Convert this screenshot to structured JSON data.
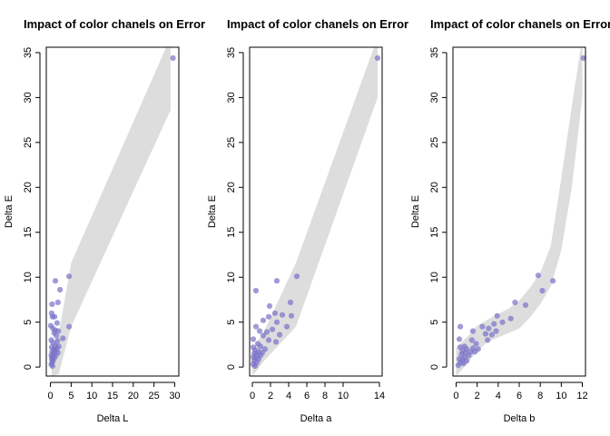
{
  "chart_data": [
    {
      "type": "scatter",
      "title": "Impact of color chanels on Error",
      "xlabel": "Delta L",
      "ylabel": "Delta E",
      "xlim": [
        -1,
        31
      ],
      "ylim": [
        -1,
        35.6
      ],
      "xticks": [
        0,
        5,
        10,
        15,
        20,
        25,
        30
      ],
      "yticks": [
        0,
        5,
        10,
        15,
        20,
        25,
        30,
        35
      ],
      "point_color": "#7b73c9",
      "band_color": "#dddddd",
      "band": {
        "x": [
          0.3,
          2.0,
          5.0,
          29.0,
          29.0
        ],
        "lower": [
          -1.0,
          -0.8,
          4.5,
          28.6,
          28.6
        ],
        "upper": [
          2.0,
          3.7,
          11.6,
          36.7,
          36.7
        ]
      },
      "points": [
        [
          29.6,
          34.4
        ],
        [
          4.5,
          10.1
        ],
        [
          1.2,
          9.6
        ],
        [
          2.3,
          8.6
        ],
        [
          1.8,
          7.2
        ],
        [
          0.4,
          7.0
        ],
        [
          0.3,
          6.0
        ],
        [
          0.5,
          5.6
        ],
        [
          1.0,
          5.6
        ],
        [
          1.6,
          4.9
        ],
        [
          0.1,
          4.6
        ],
        [
          4.5,
          4.5
        ],
        [
          0.6,
          4.3
        ],
        [
          1.2,
          4.1
        ],
        [
          1.9,
          4.0
        ],
        [
          0.9,
          3.8
        ],
        [
          1.4,
          3.5
        ],
        [
          3.0,
          3.2
        ],
        [
          0.2,
          3.0
        ],
        [
          1.7,
          2.9
        ],
        [
          0.6,
          2.7
        ],
        [
          1.2,
          2.4
        ],
        [
          2.0,
          2.3
        ],
        [
          0.3,
          2.2
        ],
        [
          0.8,
          2.0
        ],
        [
          1.5,
          2.0
        ],
        [
          1.1,
          1.8
        ],
        [
          0.4,
          1.7
        ],
        [
          1.8,
          1.6
        ],
        [
          0.7,
          1.5
        ],
        [
          0.2,
          1.3
        ],
        [
          1.3,
          1.3
        ],
        [
          0.5,
          1.1
        ],
        [
          0.9,
          1.0
        ],
        [
          0.3,
          0.9
        ],
        [
          0.6,
          0.7
        ],
        [
          0.4,
          0.5
        ],
        [
          0.2,
          0.3
        ],
        [
          0.5,
          0.1
        ]
      ]
    },
    {
      "type": "scatter",
      "title": "Impact of color chanels on Error",
      "xlabel": "Delta a",
      "ylabel": "Delta E",
      "xlim": [
        -0.3,
        14.3
      ],
      "ylim": [
        -1,
        35.6
      ],
      "xticks": [
        0,
        2,
        4,
        6,
        8,
        10,
        14
      ],
      "yticks": [
        0,
        5,
        10,
        15,
        20,
        25,
        30,
        35
      ],
      "point_color": "#7b73c9",
      "band_color": "#dddddd",
      "band": {
        "x": [
          0.0,
          1.3,
          4.8,
          13.8,
          13.8
        ],
        "lower": [
          -1.0,
          0.7,
          4.5,
          30.0,
          30.0
        ],
        "upper": [
          1.8,
          4.0,
          11.6,
          36.7,
          36.7
        ]
      },
      "points": [
        [
          13.8,
          34.4
        ],
        [
          4.9,
          10.1
        ],
        [
          2.7,
          9.6
        ],
        [
          0.4,
          8.5
        ],
        [
          4.2,
          7.2
        ],
        [
          1.9,
          6.8
        ],
        [
          2.5,
          6.0
        ],
        [
          3.3,
          5.8
        ],
        [
          4.3,
          5.7
        ],
        [
          1.8,
          5.6
        ],
        [
          1.2,
          5.2
        ],
        [
          2.7,
          5.0
        ],
        [
          3.8,
          4.5
        ],
        [
          0.4,
          4.5
        ],
        [
          2.2,
          4.2
        ],
        [
          0.8,
          4.0
        ],
        [
          1.6,
          3.9
        ],
        [
          3.0,
          3.6
        ],
        [
          1.2,
          3.5
        ],
        [
          0.1,
          3.1
        ],
        [
          1.8,
          3.0
        ],
        [
          2.6,
          2.8
        ],
        [
          0.6,
          2.6
        ],
        [
          0.9,
          2.3
        ],
        [
          0.1,
          2.2
        ],
        [
          1.4,
          2.0
        ],
        [
          0.3,
          1.9
        ],
        [
          0.7,
          1.7
        ],
        [
          1.1,
          1.6
        ],
        [
          0.2,
          1.5
        ],
        [
          0.5,
          1.4
        ],
        [
          0.9,
          1.3
        ],
        [
          0.1,
          1.1
        ],
        [
          0.4,
          1.0
        ],
        [
          0.7,
          0.9
        ],
        [
          0.2,
          0.7
        ],
        [
          0.5,
          0.5
        ],
        [
          0.1,
          0.3
        ],
        [
          0.3,
          0.1
        ]
      ]
    },
    {
      "type": "scatter",
      "title": "Impact of color chanels on Error",
      "xlabel": "Delta b",
      "ylabel": "Delta E",
      "xlim": [
        -0.3,
        12.3
      ],
      "ylim": [
        -1,
        35.6
      ],
      "xticks": [
        0,
        2,
        4,
        6,
        8,
        10,
        12
      ],
      "yticks": [
        0,
        5,
        10,
        15,
        20,
        25,
        30,
        35
      ],
      "point_color": "#7b73c9",
      "band_color": "#dddddd",
      "band": {
        "x": [
          0.0,
          1.0,
          2.0,
          3.0,
          4.0,
          5.0,
          6.0,
          7.0,
          8.0,
          9.0,
          10.0,
          11.0,
          12.0
        ],
        "lower": [
          -1.0,
          0.3,
          1.8,
          2.8,
          3.3,
          3.8,
          4.3,
          5.5,
          7.0,
          9.0,
          13.0,
          20.0,
          30.0
        ],
        "upper": [
          2.2,
          3.3,
          4.6,
          5.3,
          5.9,
          6.5,
          7.4,
          8.8,
          10.5,
          13.5,
          21.0,
          29.0,
          36.7
        ]
      },
      "points": [
        [
          12.1,
          34.4
        ],
        [
          7.8,
          10.2
        ],
        [
          9.2,
          9.6
        ],
        [
          8.2,
          8.5
        ],
        [
          5.6,
          7.2
        ],
        [
          6.6,
          6.9
        ],
        [
          3.9,
          5.7
        ],
        [
          5.2,
          5.4
        ],
        [
          4.4,
          5.0
        ],
        [
          3.6,
          4.8
        ],
        [
          0.4,
          4.5
        ],
        [
          2.5,
          4.5
        ],
        [
          3.1,
          4.3
        ],
        [
          3.8,
          4.0
        ],
        [
          1.6,
          4.0
        ],
        [
          2.8,
          3.7
        ],
        [
          3.4,
          3.6
        ],
        [
          0.3,
          3.1
        ],
        [
          1.5,
          3.0
        ],
        [
          3.0,
          3.0
        ],
        [
          1.9,
          2.6
        ],
        [
          0.8,
          2.3
        ],
        [
          1.6,
          2.1
        ],
        [
          0.4,
          2.2
        ],
        [
          1.0,
          2.0
        ],
        [
          2.1,
          2.0
        ],
        [
          1.4,
          1.7
        ],
        [
          0.6,
          1.8
        ],
        [
          0.9,
          1.6
        ],
        [
          1.8,
          1.7
        ],
        [
          0.5,
          1.4
        ],
        [
          1.2,
          1.3
        ],
        [
          0.8,
          1.1
        ],
        [
          0.3,
          0.9
        ],
        [
          0.6,
          0.8
        ],
        [
          1.0,
          0.7
        ],
        [
          0.4,
          0.5
        ],
        [
          0.7,
          0.4
        ],
        [
          0.2,
          0.2
        ]
      ]
    }
  ]
}
